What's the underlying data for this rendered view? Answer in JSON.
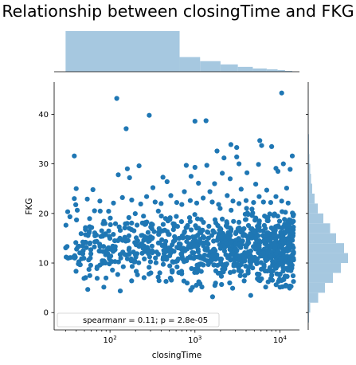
{
  "chart_data": {
    "type": "scatter",
    "title": "Relationship between closingTime and FKG",
    "xlabel": "closingTime",
    "ylabel": "FKG",
    "x_scale": "log",
    "xlim": [
      22,
      17000
    ],
    "ylim": [
      -3.5,
      46.5
    ],
    "x_ticks": [
      {
        "value": 100,
        "label": "10^2"
      },
      {
        "value": 1000,
        "label": "10^3"
      },
      {
        "value": 10000,
        "label": "10^4"
      }
    ],
    "y_ticks": [
      0,
      10,
      20,
      30,
      40
    ],
    "legend": {
      "text": "spearmanr = 0.11; p = 2.8e-05",
      "location": "lower-left"
    },
    "point_color": "#1f77b4",
    "hist_color": "#a6c8e0",
    "x_marginal_hist": [
      {
        "from": 30,
        "to": 660,
        "height": 1.0
      },
      {
        "from": 660,
        "to": 1150,
        "height": 0.36
      },
      {
        "from": 1150,
        "to": 2000,
        "height": 0.26
      },
      {
        "from": 2000,
        "to": 3200,
        "height": 0.18
      },
      {
        "from": 3200,
        "to": 4800,
        "height": 0.12
      },
      {
        "from": 4800,
        "to": 7000,
        "height": 0.08
      },
      {
        "from": 7000,
        "to": 9400,
        "height": 0.06
      },
      {
        "from": 9400,
        "to": 11500,
        "height": 0.04
      },
      {
        "from": 11500,
        "to": 14000,
        "height": 0.02
      }
    ],
    "y_marginal_hist": [
      {
        "from": -2,
        "to": 0,
        "width": 0.02
      },
      {
        "from": 0,
        "to": 2,
        "width": 0.05
      },
      {
        "from": 2,
        "to": 4,
        "width": 0.25
      },
      {
        "from": 4,
        "to": 6,
        "width": 0.42
      },
      {
        "from": 6,
        "to": 8,
        "width": 0.62
      },
      {
        "from": 8,
        "to": 10,
        "width": 0.82
      },
      {
        "from": 10,
        "to": 12,
        "width": 1.0
      },
      {
        "from": 12,
        "to": 14,
        "width": 0.9
      },
      {
        "from": 14,
        "to": 16,
        "width": 0.7
      },
      {
        "from": 16,
        "to": 18,
        "width": 0.55
      },
      {
        "from": 18,
        "to": 20,
        "width": 0.38
      },
      {
        "from": 20,
        "to": 22,
        "width": 0.24
      },
      {
        "from": 22,
        "to": 24,
        "width": 0.16
      },
      {
        "from": 24,
        "to": 26,
        "width": 0.1
      },
      {
        "from": 26,
        "to": 28,
        "width": 0.07
      },
      {
        "from": 28,
        "to": 30,
        "width": 0.05
      },
      {
        "from": 30,
        "to": 32,
        "width": 0.03
      },
      {
        "from": 32,
        "to": 36,
        "width": 0.02
      },
      {
        "from": 36,
        "to": 40,
        "width": 0.01
      },
      {
        "from": 40,
        "to": 45,
        "width": 0.005
      }
    ],
    "points": [
      [
        120,
        43.2
      ],
      [
        10500,
        44.3
      ],
      [
        290,
        39.8
      ],
      [
        155,
        37.1
      ],
      [
        1000,
        38.6
      ],
      [
        1350,
        38.7
      ],
      [
        38,
        31.6
      ],
      [
        1820,
        32.6
      ],
      [
        2650,
        33.9
      ],
      [
        3100,
        33.3
      ],
      [
        5800,
        34.7
      ],
      [
        8000,
        33.5
      ],
      [
        14000,
        31.6
      ],
      [
        3100,
        31.4
      ],
      [
        6100,
        33.7
      ],
      [
        1380,
        29.7
      ],
      [
        2200,
        31.2
      ],
      [
        125,
        27.8
      ],
      [
        160,
        29.0
      ],
      [
        220,
        29.6
      ],
      [
        790,
        29.7
      ],
      [
        1000,
        29.3
      ],
      [
        3300,
        30.0
      ],
      [
        5600,
        29.9
      ],
      [
        9000,
        29.1
      ],
      [
        11000,
        30.0
      ],
      [
        13200,
        28.9
      ],
      [
        170,
        27.2
      ],
      [
        420,
        27.3
      ],
      [
        900,
        27.5
      ],
      [
        2100,
        28.1
      ],
      [
        2600,
        27.0
      ],
      [
        4100,
        28.2
      ],
      [
        9500,
        28.5
      ],
      [
        470,
        26.4
      ],
      [
        1100,
        26.1
      ],
      [
        1700,
        26.0
      ],
      [
        5200,
        25.9
      ],
      [
        12000,
        25.1
      ],
      [
        40,
        25.0
      ],
      [
        63,
        24.8
      ],
      [
        320,
        25.2
      ],
      [
        750,
        24.4
      ],
      [
        1500,
        24.4
      ],
      [
        2400,
        23.6
      ],
      [
        3500,
        24.9
      ],
      [
        7000,
        24.7
      ],
      [
        38,
        23.0
      ],
      [
        54,
        22.9
      ],
      [
        76,
        22.5
      ],
      [
        110,
        22.1
      ],
      [
        140,
        23.2
      ],
      [
        180,
        22.7
      ],
      [
        230,
        21.9
      ],
      [
        270,
        23.4
      ],
      [
        340,
        22.3
      ],
      [
        400,
        22.0
      ],
      [
        520,
        23.6
      ],
      [
        610,
        22.2
      ],
      [
        700,
        21.8
      ],
      [
        880,
        22.6
      ],
      [
        1050,
        22.1
      ],
      [
        1250,
        23.1
      ],
      [
        1600,
        22.3
      ],
      [
        1900,
        21.8
      ],
      [
        2800,
        22.5
      ],
      [
        3300,
        22.0
      ],
      [
        4000,
        22.6
      ],
      [
        4900,
        22.2
      ],
      [
        5700,
        23.4
      ],
      [
        6400,
        22.3
      ],
      [
        7800,
        22.2
      ],
      [
        9000,
        23.4
      ],
      [
        10500,
        22.5
      ],
      [
        12500,
        22.1
      ]
    ],
    "cloud": {
      "count": 980,
      "seed": 7,
      "x_range": [
        30,
        14500
      ],
      "y_center": 13,
      "y_spread": 4.6,
      "y_min": 1.5,
      "y_max": 22
    }
  }
}
